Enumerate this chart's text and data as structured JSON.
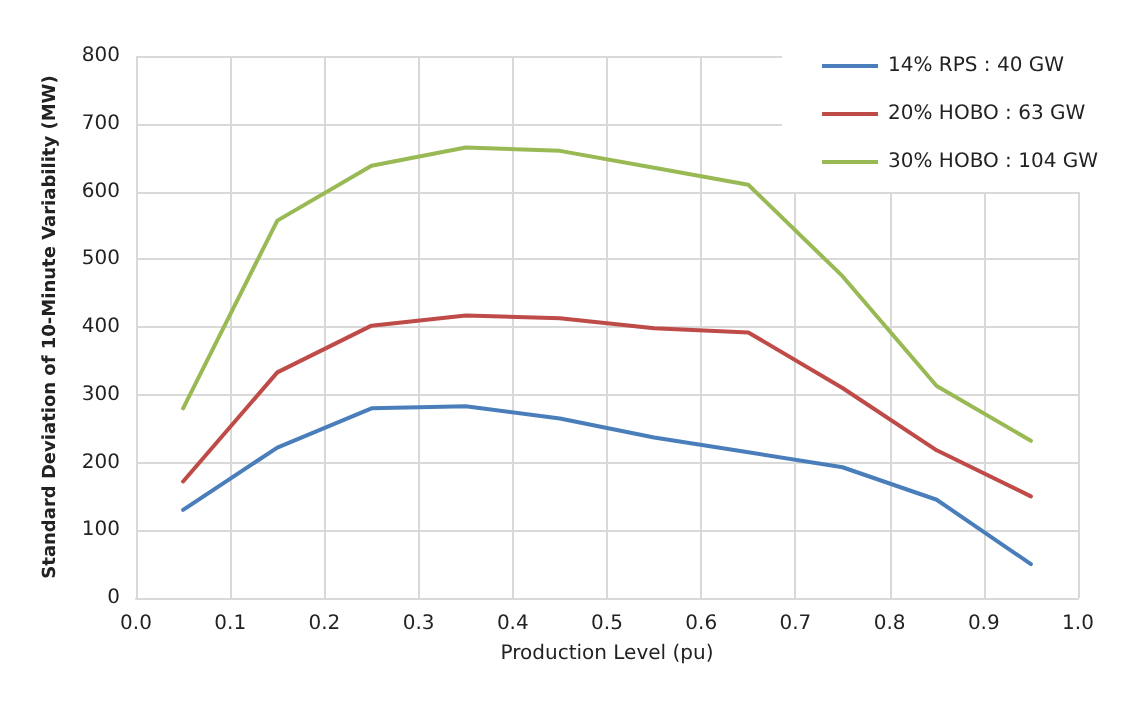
{
  "chart_data": {
    "type": "line",
    "xlabel": "Production Level (pu)",
    "ylabel": "Standard Deviation of 10-Minute Variability (MW)",
    "x": [
      0.05,
      0.15,
      0.25,
      0.35,
      0.45,
      0.55,
      0.65,
      0.75,
      0.85,
      0.95
    ],
    "series": [
      {
        "name": "14% RPS : 40 GW",
        "color": "#4a7ebb",
        "values": [
          130,
          222,
          280,
          283,
          265,
          237,
          215,
          193,
          145,
          50
        ]
      },
      {
        "name": "20% HOBO : 63 GW",
        "color": "#be4b48",
        "values": [
          172,
          333,
          402,
          417,
          413,
          398,
          392,
          310,
          218,
          150
        ]
      },
      {
        "name": "30% HOBO : 104 GW",
        "color": "#98b954",
        "values": [
          280,
          557,
          638,
          665,
          660,
          635,
          610,
          475,
          313,
          232
        ]
      }
    ],
    "xlim": [
      0,
      1
    ],
    "xticks": [
      {
        "value": 0,
        "label": "0.0"
      },
      {
        "value": 0.1,
        "label": "0.1"
      },
      {
        "value": 0.2,
        "label": "0.2"
      },
      {
        "value": 0.3,
        "label": "0.3"
      },
      {
        "value": 0.4,
        "label": "0.4"
      },
      {
        "value": 0.5,
        "label": "0.5"
      },
      {
        "value": 0.6,
        "label": "0.6"
      },
      {
        "value": 0.7,
        "label": "0.7"
      },
      {
        "value": 0.8,
        "label": "0.8"
      },
      {
        "value": 0.9,
        "label": "0.9"
      },
      {
        "value": 1,
        "label": "1.0"
      }
    ],
    "ylim": [
      0,
      800
    ],
    "yticks": [
      0,
      100,
      200,
      300,
      400,
      500,
      600,
      700,
      800
    ],
    "grid": true,
    "legend": "top right",
    "marker": "none",
    "line_style": "solid"
  }
}
